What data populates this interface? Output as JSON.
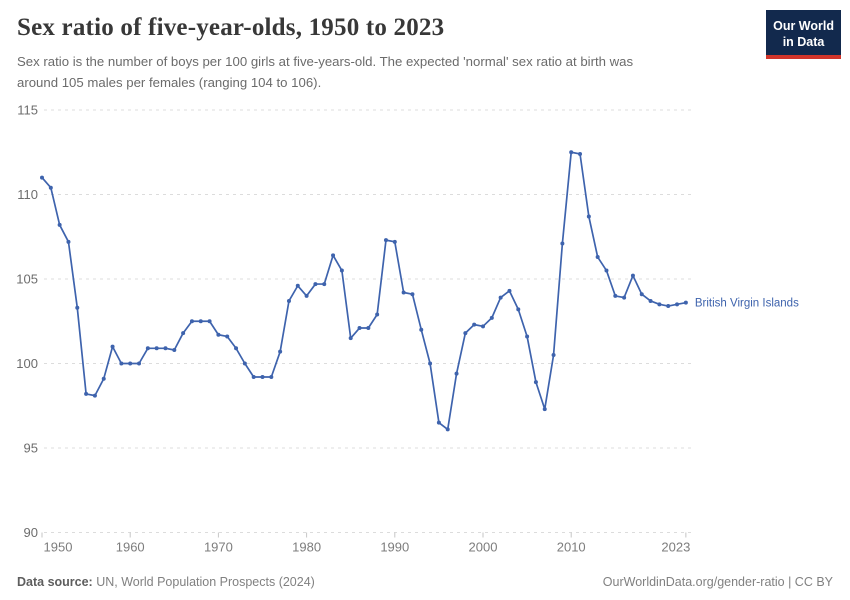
{
  "header": {
    "title": "Sex ratio of five-year-olds, 1950 to 2023",
    "subtitle_lines": [
      "Sex ratio is the number of boys per 100 girls at five-years-old. The expected 'normal' sex ratio at birth was",
      "around 105 males per females (ranging 104 to 106)."
    ]
  },
  "logo": {
    "line1": "Our World",
    "line2": "in Data",
    "bg_color": "#12294d",
    "stripe_color": "#d2352b"
  },
  "chart_data": {
    "type": "line",
    "title": "Sex ratio of five-year-olds, 1950 to 2023",
    "xlabel": "",
    "ylabel": "",
    "ylim": [
      90,
      115
    ],
    "yticks": [
      90,
      95,
      100,
      105,
      110,
      115
    ],
    "xticks": [
      1950,
      1960,
      1970,
      1980,
      1990,
      2000,
      2010,
      2023
    ],
    "grid": "horizontal dashed",
    "legend_position": "end-of-line label",
    "gridline_color": "#dcdcdc",
    "axis_label_color": "#7d7d7d",
    "series": [
      {
        "name": "British Virgin Islands",
        "color": "#3e63ad",
        "x": [
          1950,
          1951,
          1952,
          1953,
          1954,
          1955,
          1956,
          1957,
          1958,
          1959,
          1960,
          1961,
          1962,
          1963,
          1964,
          1965,
          1966,
          1967,
          1968,
          1969,
          1970,
          1971,
          1972,
          1973,
          1974,
          1975,
          1976,
          1977,
          1978,
          1979,
          1980,
          1981,
          1982,
          1983,
          1984,
          1985,
          1986,
          1987,
          1988,
          1989,
          1990,
          1991,
          1992,
          1993,
          1994,
          1995,
          1996,
          1997,
          1998,
          1999,
          2000,
          2001,
          2002,
          2003,
          2004,
          2005,
          2006,
          2007,
          2008,
          2009,
          2010,
          2011,
          2012,
          2013,
          2014,
          2015,
          2016,
          2017,
          2018,
          2019,
          2020,
          2021,
          2022,
          2023
        ],
        "values": [
          111.0,
          110.4,
          108.2,
          107.2,
          103.3,
          98.2,
          98.1,
          99.1,
          101.0,
          100.0,
          100.0,
          100.0,
          100.9,
          100.9,
          100.9,
          100.8,
          101.8,
          102.5,
          102.5,
          102.5,
          101.7,
          101.6,
          100.9,
          100.0,
          99.2,
          99.2,
          99.2,
          100.7,
          103.7,
          104.6,
          104.0,
          104.7,
          104.7,
          106.4,
          105.5,
          101.5,
          102.1,
          102.1,
          102.9,
          107.3,
          107.2,
          104.2,
          104.1,
          102.0,
          100.0,
          96.5,
          96.1,
          99.4,
          101.8,
          102.3,
          102.2,
          102.7,
          103.9,
          104.3,
          103.2,
          101.6,
          98.9,
          97.3,
          100.5,
          107.1,
          112.5,
          112.4,
          108.7,
          106.3,
          105.5,
          104.0,
          103.9,
          105.2,
          104.1,
          103.7,
          103.5,
          103.4,
          103.5,
          103.6
        ]
      }
    ]
  },
  "footer": {
    "datasource_label": "Data source:",
    "datasource_value": " UN, World Population Prospects (2024)",
    "right_text": "OurWorldinData.org/gender-ratio | CC BY"
  }
}
